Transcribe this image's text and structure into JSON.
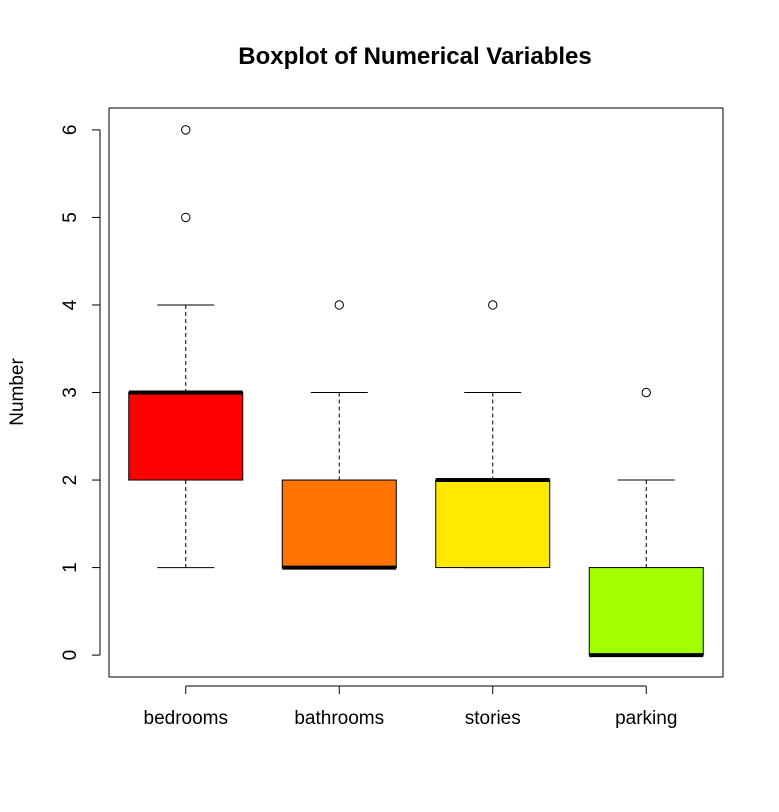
{
  "chart_data": {
    "type": "boxplot",
    "title": "Boxplot of Numerical Variables",
    "xlabel": "",
    "ylabel": "Number",
    "ylim": [
      -0.25,
      6.25
    ],
    "y_ticks": [
      "0",
      "1",
      "2",
      "3",
      "4",
      "5",
      "6"
    ],
    "grid": false,
    "legend": "none",
    "categories": [
      "bedrooms",
      "bathrooms",
      "stories",
      "parking"
    ],
    "boxes": [
      {
        "category": "bedrooms",
        "whisker_low": 1,
        "q1": 2,
        "median": 3,
        "q3": 3,
        "whisker_high": 4,
        "outliers": [
          5,
          6
        ],
        "color": "#ff0000"
      },
      {
        "category": "bathrooms",
        "whisker_low": 1,
        "q1": 1,
        "median": 1,
        "q3": 2,
        "whisker_high": 3,
        "outliers": [
          4
        ],
        "color": "#ff7300"
      },
      {
        "category": "stories",
        "whisker_low": 1,
        "q1": 1,
        "median": 2,
        "q3": 2,
        "whisker_high": 3,
        "outliers": [
          4
        ],
        "color": "#ffe900"
      },
      {
        "category": "parking",
        "whisker_low": 0,
        "q1": 0,
        "median": 0,
        "q3": 1,
        "whisker_high": 2,
        "outliers": [
          3
        ],
        "color": "#a1ff00"
      }
    ]
  }
}
